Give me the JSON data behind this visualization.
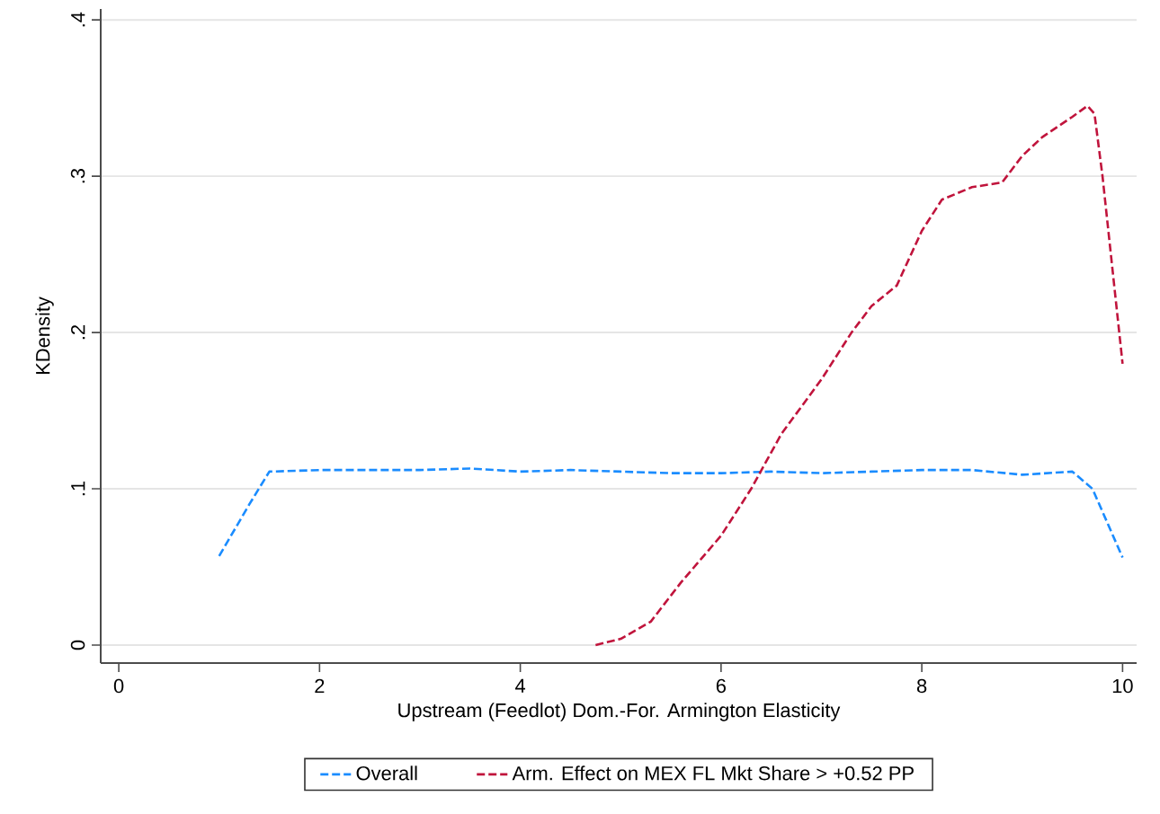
{
  "chart_data": {
    "type": "line",
    "xlabel": "Upstream (Feedlot) Dom.-For. Armington Elasticity",
    "ylabel": "KDensity",
    "xlim": [
      -0.18,
      10.14
    ],
    "ylim": [
      -0.0115,
      0.407
    ],
    "xticks": [
      0,
      2,
      4,
      6,
      8,
      10
    ],
    "yticks": [
      0,
      {
        "value": 0.1,
        "label": ".1"
      },
      {
        "value": 0.2,
        "label": ".2"
      },
      {
        "value": 0.3,
        "label": ".3"
      },
      {
        "value": 0.4,
        "label": ".4"
      }
    ],
    "grid": "y",
    "legend": "bottom",
    "line_style": "dashed",
    "series": [
      {
        "name": "Overall",
        "color": "#1a8cff",
        "x": [
          1.0,
          1.3,
          1.5,
          2,
          2.5,
          3,
          3.5,
          4,
          4.5,
          5,
          5.5,
          6,
          6.5,
          7,
          7.5,
          8,
          8.5,
          9,
          9.5,
          9.7,
          10
        ],
        "values": [
          0.057,
          0.09,
          0.111,
          0.112,
          0.112,
          0.112,
          0.113,
          0.111,
          0.112,
          0.111,
          0.11,
          0.11,
          0.111,
          0.11,
          0.111,
          0.112,
          0.112,
          0.109,
          0.111,
          0.1,
          0.056
        ]
      },
      {
        "name": "Arm. Effect on MEX FL Mkt Share > +0.52 PP",
        "color": "#c0143c",
        "x": [
          4.75,
          5,
          5.3,
          5.6,
          6,
          6.3,
          6.6,
          7,
          7.3,
          7.5,
          7.75,
          8,
          8.2,
          8.5,
          8.8,
          9,
          9.2,
          9.5,
          9.65,
          9.72,
          9.8,
          9.9,
          10
        ],
        "values": [
          0.0,
          0.004,
          0.015,
          0.04,
          0.07,
          0.1,
          0.135,
          0.17,
          0.2,
          0.217,
          0.23,
          0.265,
          0.285,
          0.293,
          0.296,
          0.313,
          0.325,
          0.338,
          0.345,
          0.34,
          0.3,
          0.24,
          0.18
        ]
      }
    ]
  }
}
